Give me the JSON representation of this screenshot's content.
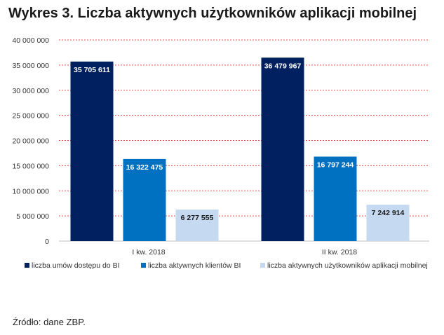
{
  "chart_data": {
    "type": "bar",
    "title": "Wykres 3. Liczba aktywnych użytkowników aplikacji mobilnej",
    "categories": [
      "I kw. 2018",
      "II kw. 2018"
    ],
    "series": [
      {
        "name": "liczba umów dostępu do BI",
        "color": "#002060",
        "label_color": "#ffffff",
        "values": [
          35705611,
          36479967
        ],
        "labels": [
          "35 705 611",
          "36 479 967"
        ]
      },
      {
        "name": "liczba aktywnych klientów BI",
        "color": "#0070C0",
        "label_color": "#ffffff",
        "values": [
          16322475,
          16797244
        ],
        "labels": [
          "16 322 475",
          "16 797 244"
        ]
      },
      {
        "name": "liczba aktywnych użytkowników aplikacji mobilnej",
        "color": "#C5D9F1",
        "label_color": "#1a1a1a",
        "values": [
          6277555,
          7242914
        ],
        "labels": [
          "6 277 555",
          "7 242 914"
        ]
      }
    ],
    "ylim": [
      0,
      40000000
    ],
    "yticks": [
      0,
      5000000,
      10000000,
      15000000,
      20000000,
      25000000,
      30000000,
      35000000,
      40000000
    ],
    "ytick_labels": [
      "0",
      "5 000 000",
      "10 000 000",
      "15 000 000",
      "20 000 000",
      "25 000 000",
      "30 000 000",
      "35 000 000",
      "40 000 000"
    ],
    "grid": true,
    "grid_color": "#E05050",
    "legend_position": "bottom",
    "xlabel": "",
    "ylabel": ""
  },
  "footer": {
    "source": "Źródło: dane ZBP."
  }
}
